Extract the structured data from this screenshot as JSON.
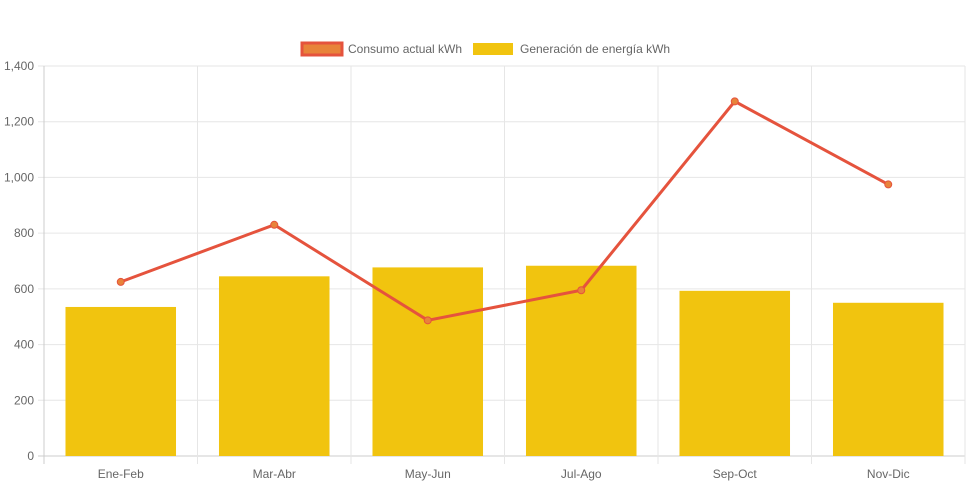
{
  "chart_data": {
    "type": "bar",
    "categories": [
      "Ene-Feb",
      "Mar-Abr",
      "May-Jun",
      "Jul-Ago",
      "Sep-Oct",
      "Nov-Dic"
    ],
    "series": [
      {
        "name": "Consumo actual kWh",
        "type": "line",
        "values": [
          625,
          830,
          487,
          595,
          1273,
          975
        ]
      },
      {
        "name": "Generación de energía kWh",
        "type": "bar",
        "values": [
          535,
          645,
          677,
          683,
          593,
          550
        ]
      }
    ],
    "ylim": [
      0,
      1400
    ],
    "y_ticks": [
      "0",
      "200",
      "400",
      "600",
      "800",
      "1,000",
      "1,200",
      "1,400"
    ],
    "legend_position": "top",
    "grid": true,
    "colors": {
      "line_stroke": "#e5533d",
      "line_point_fill": "#e8833a",
      "legend_line_fill": "#e8833a",
      "bar_fill": "#f1c40f",
      "grid": "#e6e6e6",
      "axis": "#cccccc"
    }
  }
}
